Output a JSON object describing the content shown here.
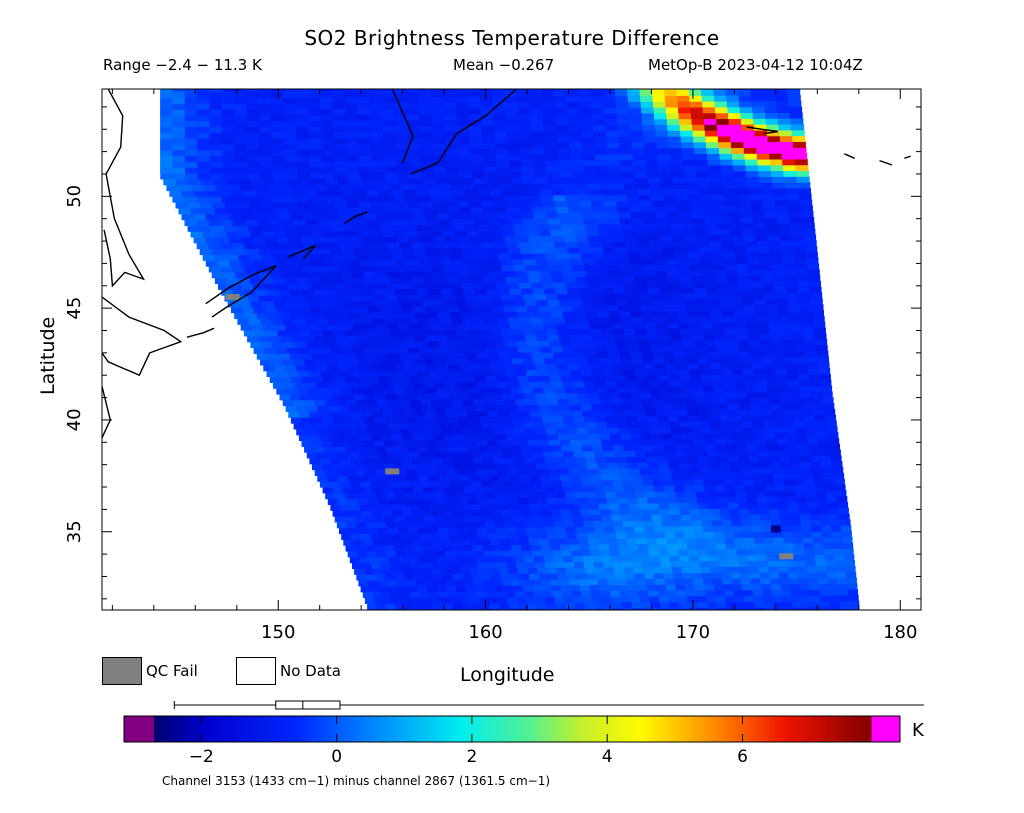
{
  "chart_data": {
    "type": "heatmap",
    "title": "SO2 Brightness Temperature Difference",
    "range_text": "Range −2.4 − 11.3 K",
    "mean_text": "Mean −0.267",
    "satellite_text": "MetOp-B 2023-04-12 10:04Z",
    "xlabel": "Longitude",
    "ylabel": "Latitude",
    "xlim": [
      141.5,
      181
    ],
    "ylim": [
      31.5,
      54.8
    ],
    "x_ticks": [
      150,
      160,
      170,
      180
    ],
    "x_tick_labels": [
      "150",
      "160",
      "170",
      "180"
    ],
    "y_ticks": [
      35,
      40,
      45,
      50
    ],
    "y_tick_labels": [
      "35",
      "40",
      "45",
      "50"
    ],
    "legend": [
      {
        "label": "QC Fail",
        "color": "#808080"
      },
      {
        "label": "No Data",
        "color": "#ffffff"
      }
    ],
    "colorbar": {
      "min": -2.7,
      "max": 7.9,
      "ticks": [
        -2,
        0,
        2,
        4,
        6
      ],
      "tick_labels": [
        "−2",
        "0",
        "2",
        "4",
        "6"
      ],
      "unit": "K",
      "under_color": "#800080",
      "over_color": "#ff00ff"
    },
    "boxplot": {
      "whisker_low": -2.4,
      "q1": -0.9,
      "median": -0.5,
      "q3": 0.05,
      "whisker_high": 11.3
    },
    "caption": "Channel 3153 (1433 cm−1) minus channel 2867 (1361.5 cm−1)",
    "swath": {
      "left_edge": [
        [
          144.3,
          50.8
        ],
        [
          147.0,
          46.0
        ],
        [
          150.3,
          40.5
        ],
        [
          152.5,
          36.0
        ],
        [
          154.3,
          31.5
        ]
      ],
      "right_edge": [
        [
          175.1,
          54.8
        ],
        [
          175.9,
          48.0
        ],
        [
          176.7,
          41.0
        ],
        [
          177.6,
          35.0
        ],
        [
          178.0,
          31.5
        ]
      ],
      "scan_line_tilt": 0.12
    },
    "field": {
      "background": -0.8,
      "cold_core_center": [
        162,
        43
      ],
      "cold_core_value": -1.2,
      "warm_arc": {
        "center": [
          176,
          44.5
        ],
        "radius_deg": 13.5,
        "peak": 0.9
      },
      "warm_west_edge": 1.0,
      "plume": {
        "center": [
          179,
          60
        ],
        "radius_deg": 13.5,
        "peak": 8.5
      },
      "southern_band": {
        "peak": 1.2,
        "latitude": 33.5
      }
    },
    "qc_fail_pixels": [
      [
        147.8,
        45.5
      ],
      [
        155.5,
        37.7
      ],
      [
        174.5,
        33.9
      ]
    ],
    "notable_pixels": [
      {
        "lon": 174.0,
        "lat": 35.1,
        "value": -2.5
      }
    ]
  }
}
